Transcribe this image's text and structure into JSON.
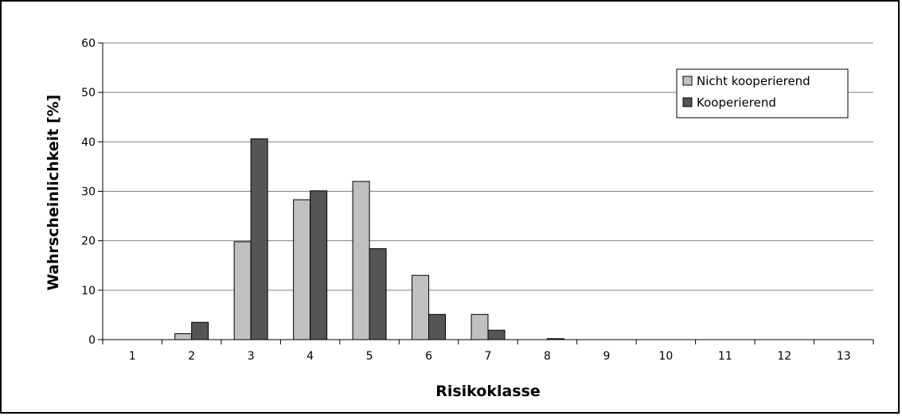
{
  "chart_data": {
    "type": "bar",
    "xlabel": "Risikoklasse",
    "ylabel": "Wahrscheinlichkeit [%]",
    "categories": [
      "1",
      "2",
      "3",
      "4",
      "5",
      "6",
      "7",
      "8",
      "9",
      "10",
      "11",
      "12",
      "13"
    ],
    "ylim": [
      0,
      60
    ],
    "yticks": [
      0,
      10,
      20,
      30,
      40,
      50,
      60
    ],
    "grid": true,
    "legend_position": "top-right",
    "series": [
      {
        "name": "Nicht kooperierend",
        "color": "#c0c0c0",
        "values": [
          0,
          1.2,
          19.8,
          28.3,
          32,
          13,
          5.1,
          0,
          0,
          0,
          0,
          0,
          0
        ]
      },
      {
        "name": "Kooperierend",
        "color": "#555555",
        "values": [
          0,
          3.5,
          40.6,
          30.1,
          18.4,
          5.1,
          1.9,
          0.2,
          0,
          0,
          0,
          0,
          0
        ]
      }
    ]
  }
}
